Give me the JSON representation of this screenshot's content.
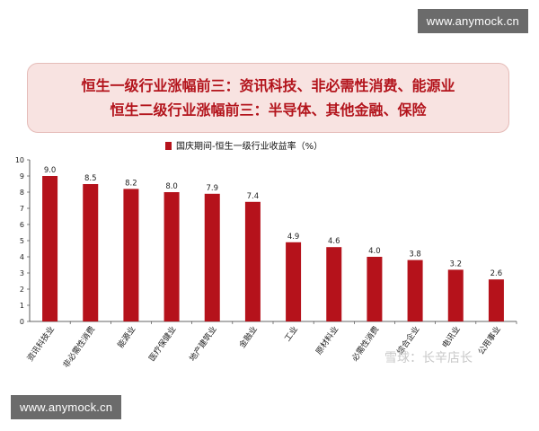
{
  "watermark": {
    "text": "www.anymock.cn"
  },
  "banner": {
    "line1": "恒生一级行业涨幅前三：资讯科技、非必需性消费、能源业",
    "line2": "恒生二级行业涨幅前三：半导体、其他金融、保险"
  },
  "logo_text": "雪球：长辛店长",
  "chart_data": {
    "type": "bar",
    "title": "",
    "xlabel": "",
    "ylabel": "",
    "legend": "国庆期间-恒生一级行业收益率（%）",
    "legend_position": "top-center",
    "grid": false,
    "ylim": [
      0,
      10
    ],
    "yticks": [
      "0",
      "1",
      "2",
      "3",
      "4",
      "5",
      "6",
      "7",
      "8",
      "9",
      "10"
    ],
    "color": "#b5121b",
    "categories": [
      "资讯科技业",
      "非必需性消费",
      "能源业",
      "医疗保健业",
      "地产建筑业",
      "金融业",
      "工业",
      "原材料业",
      "必需性消费",
      "综合企业",
      "电讯业",
      "公用事业"
    ],
    "values": [
      9.0,
      8.5,
      8.2,
      8.0,
      7.9,
      7.4,
      4.9,
      4.6,
      4.0,
      3.8,
      3.2,
      2.6
    ],
    "data_labels": [
      "9.0",
      "8.5",
      "8.2",
      "8.0",
      "7.9",
      "7.4",
      "4.9",
      "4.6",
      "4.0",
      "3.8",
      "3.2",
      "2.6"
    ]
  }
}
